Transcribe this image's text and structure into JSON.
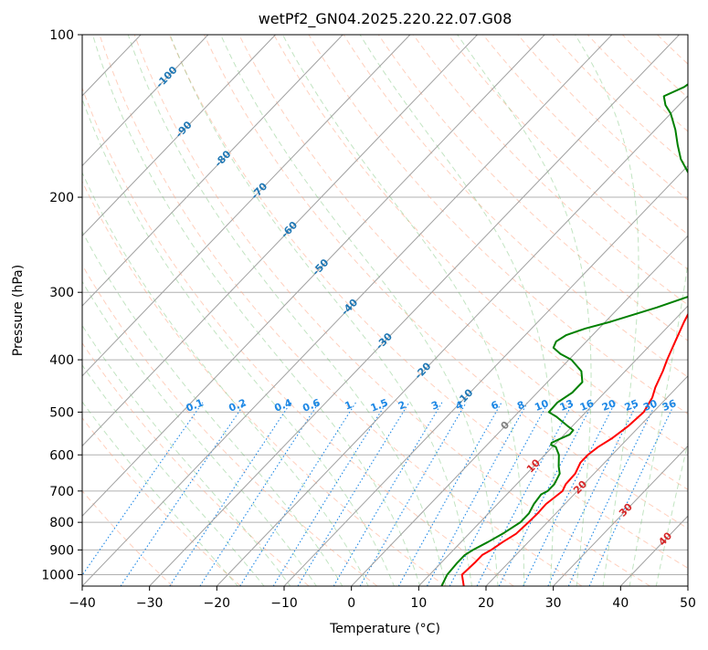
{
  "chart_data": {
    "type": "line",
    "title": "wetPf2_GN04.2025.220.22.07.G08",
    "xlabel": "Temperature (°C)",
    "ylabel": "Pressure (hPa)",
    "xlim": [
      -40,
      50
    ],
    "ylim_pressure": [
      1050,
      100
    ],
    "y_scale": "log",
    "x_ticks": [
      "−40",
      "−30",
      "−20",
      "−10",
      "0",
      "10",
      "20",
      "30",
      "40",
      "50"
    ],
    "x_tick_values": [
      -40,
      -30,
      -20,
      -10,
      0,
      10,
      20,
      30,
      40,
      50
    ],
    "y_ticks": [
      "1000",
      "900",
      "800",
      "700",
      "600",
      "500",
      "400",
      "300",
      "200",
      "100"
    ],
    "y_tick_values": [
      1000,
      900,
      800,
      700,
      600,
      500,
      400,
      300,
      200,
      100
    ],
    "grid": true,
    "skew": true,
    "isotherm_labels": [
      "-100",
      "-90",
      "-80",
      "-70",
      "-60",
      "-50",
      "-40",
      "-30",
      "-20",
      "-10",
      "0",
      "10",
      "20",
      "30",
      "40"
    ],
    "isotherm_label_pressure": [
      120,
      150,
      170,
      195,
      230,
      270,
      320,
      370,
      420,
      470,
      530,
      630,
      690,
      760,
      860
    ],
    "mixing_ratio_labels": [
      "0.1",
      "0.2",
      "0.4",
      "0.6",
      "1",
      "1.5",
      "2",
      "3",
      "4",
      "6",
      "8",
      "10",
      "13",
      "16",
      "20",
      "25",
      "30",
      "36"
    ],
    "mixing_ratio_values": [
      0.1,
      0.2,
      0.4,
      0.6,
      1,
      1.5,
      2,
      3,
      4,
      6,
      8,
      10,
      13,
      16,
      20,
      25,
      30,
      36
    ],
    "series": [
      {
        "color": "#ff0000",
        "points": [
          [
            1050,
            16.7
          ],
          [
            1000,
            14.8
          ],
          [
            950,
            15.0
          ],
          [
            920,
            15.0
          ],
          [
            900,
            15.6
          ],
          [
            870,
            16.2
          ],
          [
            840,
            17.0
          ],
          [
            800,
            17.2
          ],
          [
            770,
            17.3
          ],
          [
            740,
            17.2
          ],
          [
            700,
            17.8
          ],
          [
            680,
            17.3
          ],
          [
            650,
            17.2
          ],
          [
            620,
            16.4
          ],
          [
            600,
            16.4
          ],
          [
            580,
            16.8
          ],
          [
            560,
            17.6
          ],
          [
            530,
            18.3
          ],
          [
            500,
            18.6
          ],
          [
            470,
            17.8
          ],
          [
            450,
            16.8
          ],
          [
            420,
            15.6
          ],
          [
            400,
            14.6
          ],
          [
            370,
            13.2
          ],
          [
            340,
            11.7
          ],
          [
            310,
            10.3
          ],
          [
            300,
            9.9
          ],
          [
            290,
            9.2
          ],
          [
            270,
            7.3
          ],
          [
            250,
            5.6
          ],
          [
            230,
            3.7
          ],
          [
            215,
            2.8
          ],
          [
            200,
            2.2
          ],
          [
            190,
            2.1
          ],
          [
            180,
            2.4
          ],
          [
            175,
            3.3
          ],
          [
            170,
            5.2
          ],
          [
            160,
            6.3
          ],
          [
            150,
            6.3
          ],
          [
            140,
            6.5
          ],
          [
            130,
            6.4
          ],
          [
            120,
            6.0
          ],
          [
            110,
            5.4
          ],
          [
            100,
            4.4
          ]
        ]
      },
      {
        "color": "#008000",
        "points": [
          [
            1050,
            13.4
          ],
          [
            1000,
            12.6
          ],
          [
            950,
            12.4
          ],
          [
            920,
            12.4
          ],
          [
            900,
            12.9
          ],
          [
            870,
            14.0
          ],
          [
            840,
            15.0
          ],
          [
            800,
            16.0
          ],
          [
            770,
            16.0
          ],
          [
            740,
            15.4
          ],
          [
            710,
            15.1
          ],
          [
            700,
            15.6
          ],
          [
            680,
            15.6
          ],
          [
            650,
            14.9
          ],
          [
            630,
            13.7
          ],
          [
            600,
            12.1
          ],
          [
            580,
            10.5
          ],
          [
            575,
            9.5
          ],
          [
            570,
            9.3
          ],
          [
            560,
            10.0
          ],
          [
            550,
            10.8
          ],
          [
            540,
            10.7
          ],
          [
            530,
            9.2
          ],
          [
            510,
            6.3
          ],
          [
            500,
            4.5
          ],
          [
            480,
            4.4
          ],
          [
            460,
            5.2
          ],
          [
            440,
            5.2
          ],
          [
            420,
            3.5
          ],
          [
            400,
            0.4
          ],
          [
            390,
            -2.1
          ],
          [
            380,
            -4.0
          ],
          [
            370,
            -4.5
          ],
          [
            360,
            -3.9
          ],
          [
            350,
            -2.0
          ],
          [
            340,
            0.8
          ],
          [
            320,
            5.6
          ],
          [
            300,
            10.0
          ],
          [
            295,
            10.4
          ],
          [
            280,
            8.1
          ],
          [
            260,
            6.4
          ],
          [
            240,
            5.0
          ],
          [
            225,
            2.7
          ],
          [
            210,
            -1.0
          ],
          [
            200,
            -4.0
          ],
          [
            190,
            -6.0
          ],
          [
            180,
            -9.0
          ],
          [
            170,
            -12.0
          ],
          [
            160,
            -14.5
          ],
          [
            150,
            -17.0
          ],
          [
            140,
            -20.0
          ],
          [
            135,
            -22.0
          ],
          [
            130,
            -23.5
          ],
          [
            125,
            -21.8
          ],
          [
            120,
            -21.2
          ],
          [
            110,
            -21.0
          ],
          [
            100,
            -20.2
          ]
        ]
      }
    ]
  }
}
